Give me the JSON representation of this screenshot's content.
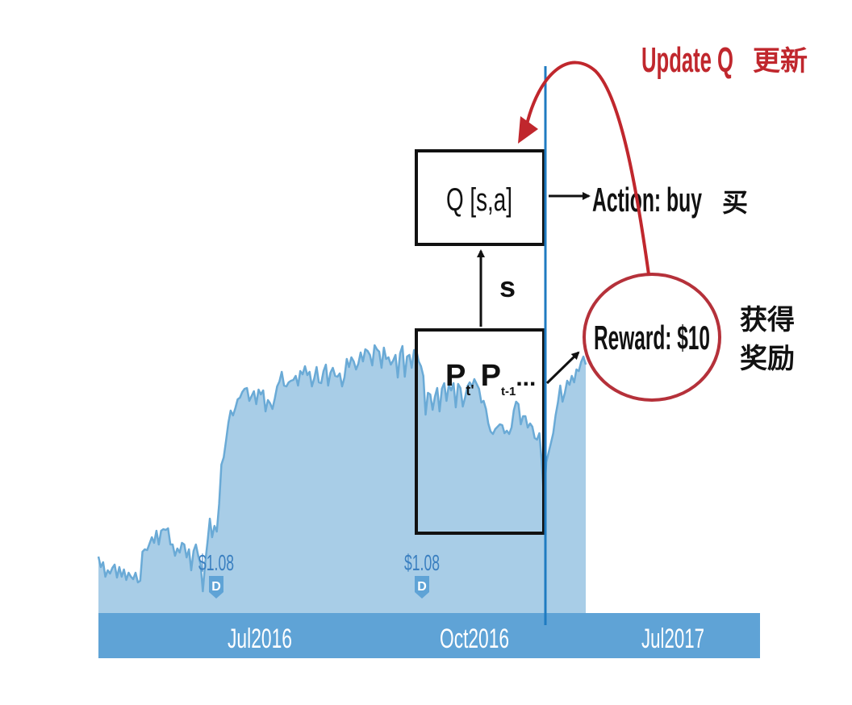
{
  "header": {
    "update_label": "Update Q",
    "update_label_cn": "更新"
  },
  "q_box": {
    "label": "Q [s,a]"
  },
  "action": {
    "label": "Action: buy",
    "label_cn": "买"
  },
  "state": {
    "label": "s"
  },
  "price_box": {
    "p_label": "P",
    "sub1": "t'",
    "p2_label": "P",
    "sub2": "t-1",
    "ellipsis": "..."
  },
  "reward": {
    "label": "Reward: $10",
    "label_cn_line1": "获得",
    "label_cn_line2": "奖励"
  },
  "dividends": [
    {
      "amount": "$1.08",
      "badge": "D"
    },
    {
      "amount": "$1.08",
      "badge": "D"
    }
  ],
  "axis": {
    "ticks": [
      "Jul2016",
      "Oct2016",
      "Jul2017"
    ]
  },
  "colors": {
    "accent_red": "#c0272d",
    "area_fill": "#a8cde7",
    "area_line": "#6aaad6",
    "axis_bar": "#5fa3d6",
    "marker_line": "#1f7bc1",
    "dividend_text": "#3a7fc0"
  },
  "chart_data": {
    "type": "area",
    "title": "",
    "xlabel": "",
    "ylabel": "",
    "x_ticks": [
      "Jul2016",
      "Oct2016",
      "Jul2017"
    ],
    "series": [
      {
        "values": [
          47,
          34,
          40,
          22,
          30,
          26,
          33,
          37,
          21,
          34,
          22,
          31,
          18,
          27,
          22,
          19,
          27,
          15,
          17,
          53,
          56,
          55,
          63,
          71,
          64,
          79,
          62,
          79,
          81,
          80,
          82,
          62,
          62,
          48,
          57,
          52,
          64,
          62,
          46,
          56,
          30,
          54,
          62,
          48,
          38,
          4,
          39,
          65,
          94,
          71,
          85,
          78,
          112,
          161,
          170,
          191,
          213,
          228,
          222,
          231,
          242,
          244,
          251,
          255,
          256,
          240,
          246,
          252,
          236,
          254,
          248,
          253,
          227,
          241,
          237,
          230,
          243,
          258,
          264,
          276,
          259,
          258,
          263,
          265,
          266,
          271,
          259,
          277,
          273,
          283,
          272,
          276,
          258,
          268,
          282,
          263,
          262,
          277,
          285,
          259,
          275,
          281,
          271,
          270,
          274,
          258,
          269,
          292,
          282,
          294,
          289,
          279,
          286,
          300,
          289,
          304,
          302,
          297,
          284,
          309,
          304,
          301,
          281,
          306,
          292,
          294,
          285,
          290,
          297,
          269,
          299,
          308,
          270,
          295,
          297,
          281,
          303,
          303,
          289,
          283,
          271,
          223,
          250,
          248,
          229,
          245,
          256,
          227,
          255,
          262,
          240,
          260,
          253,
          262,
          232,
          261,
          256,
          233,
          244,
          258,
          263,
          258,
          267,
          261,
          255,
          238,
          240,
          230,
          212,
          202,
          199,
          205,
          208,
          211,
          210,
          200,
          203,
          199,
          207,
          228,
          239,
          236,
          211,
          221,
          221,
          207,
          212,
          208,
          194,
          192,
          200,
          165,
          118,
          164,
          176,
          188,
          200,
          222,
          238,
          259,
          239,
          250,
          265,
          260,
          271,
          263,
          279,
          277,
          288,
          295,
          285
        ]
      }
    ]
  }
}
